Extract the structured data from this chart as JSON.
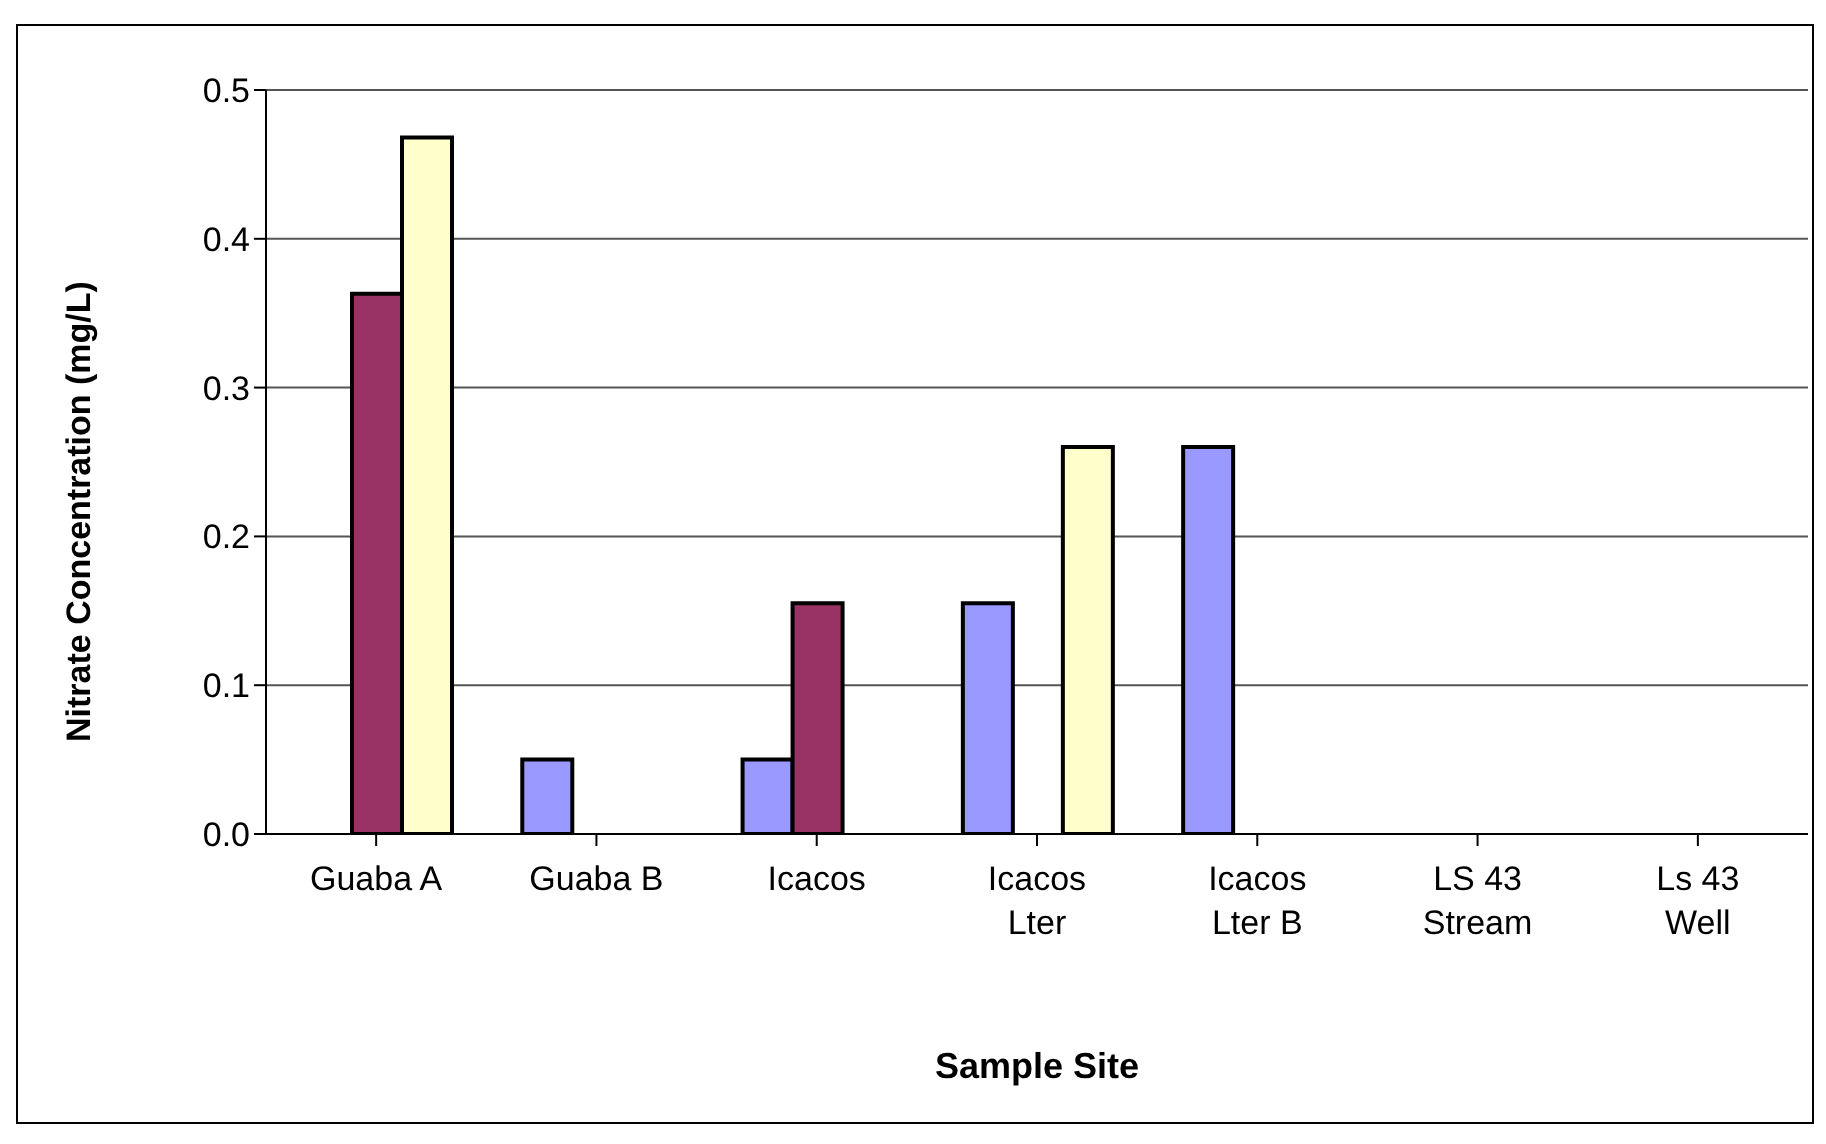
{
  "chart_data": {
    "type": "bar",
    "xlabel": "Sample Site",
    "ylabel": "Nitrate Concentration (mg/L)",
    "categories": [
      "Guaba A",
      "Guaba B",
      "Icacos",
      "Icacos\nLter",
      "Icacos\nLter B",
      "LS 43\nStream",
      "Ls 43\nWell"
    ],
    "series": [
      {
        "color": "#9999ff",
        "values": [
          null,
          0.05,
          0.05,
          0.155,
          0.26,
          null,
          null
        ]
      },
      {
        "color": "#993366",
        "values": [
          0.363,
          null,
          0.155,
          null,
          null,
          null,
          null
        ]
      },
      {
        "color": "#ffffcc",
        "values": [
          0.468,
          null,
          null,
          0.26,
          null,
          null,
          null
        ]
      }
    ],
    "ylim": [
      0,
      0.5
    ],
    "yticks": [
      {
        "value": 0,
        "label": "0.0"
      },
      0.1,
      0.2,
      0.3,
      0.4,
      0.5
    ],
    "grid": "y",
    "legend": false
  }
}
